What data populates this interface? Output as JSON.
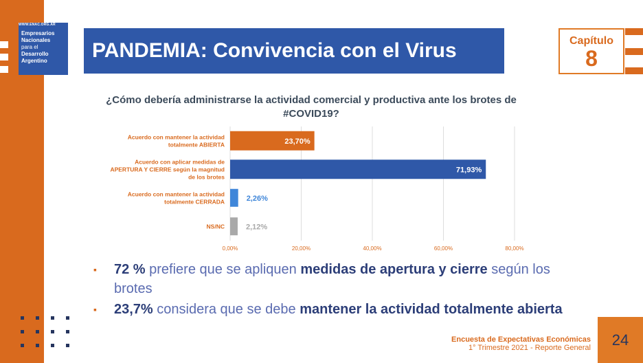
{
  "logo": {
    "url": "WWW.ENAC.ORG.AR",
    "lines": [
      "Empresarios",
      "Nacionales",
      "para el",
      "Desarrollo",
      "Argentino"
    ]
  },
  "header": {
    "title": "PANDEMIA: Convivencia con el Virus",
    "chapter_label": "Capítulo",
    "chapter_number": "8"
  },
  "question": "¿Cómo debería administrarse la actividad comercial y productiva ante los brotes de #COVID19?",
  "chart_data": {
    "type": "bar",
    "orientation": "horizontal",
    "categories": [
      [
        "Acuerdo con mantener la actividad",
        "totalmente ABIERTA"
      ],
      [
        "Acuerdo con aplicar medidas de",
        "APERTURA Y CIERRE según la magnitud",
        "de los brotes"
      ],
      [
        "Acuerdo con mantener la actividad",
        "totalmente CERRADA"
      ],
      [
        "NS/NC"
      ]
    ],
    "values": [
      23.7,
      71.93,
      2.26,
      2.12
    ],
    "value_labels": [
      "23,70%",
      "71,93%",
      "2,26%",
      "2,12%"
    ],
    "bar_colors": [
      "#d96a1e",
      "#2f58a8",
      "#3f86d9",
      "#a9a9a9"
    ],
    "label_colors": [
      "#d96a1e",
      "#d96a1e",
      "#d96a1e",
      "#d96a1e"
    ],
    "value_label_colors": [
      "#ffffff",
      "#ffffff",
      "#3f86d9",
      "#a9a9a9"
    ],
    "xlim": [
      0,
      80
    ],
    "xticks": [
      0,
      20,
      40,
      60,
      80
    ],
    "xtick_labels": [
      "0,00%",
      "20,00%",
      "40,00%",
      "60,00%",
      "80,00%"
    ],
    "grid": true
  },
  "bullets": [
    {
      "strong1": "72 %",
      "light1": " prefiere que se apliquen ",
      "strong2": "medidas de apertura y cierre",
      "light2": " según los brotes"
    },
    {
      "strong1": "23,7%",
      "light1": " considera que se debe ",
      "strong2": "mantener la actividad totalmente abierta",
      "light2": ""
    }
  ],
  "bullet_mark": "▪",
  "footer": {
    "title": "Encuesta de Expectativas Económicas",
    "subtitle": "1° Trimestre 2021 - Reporte General",
    "page": "24"
  }
}
